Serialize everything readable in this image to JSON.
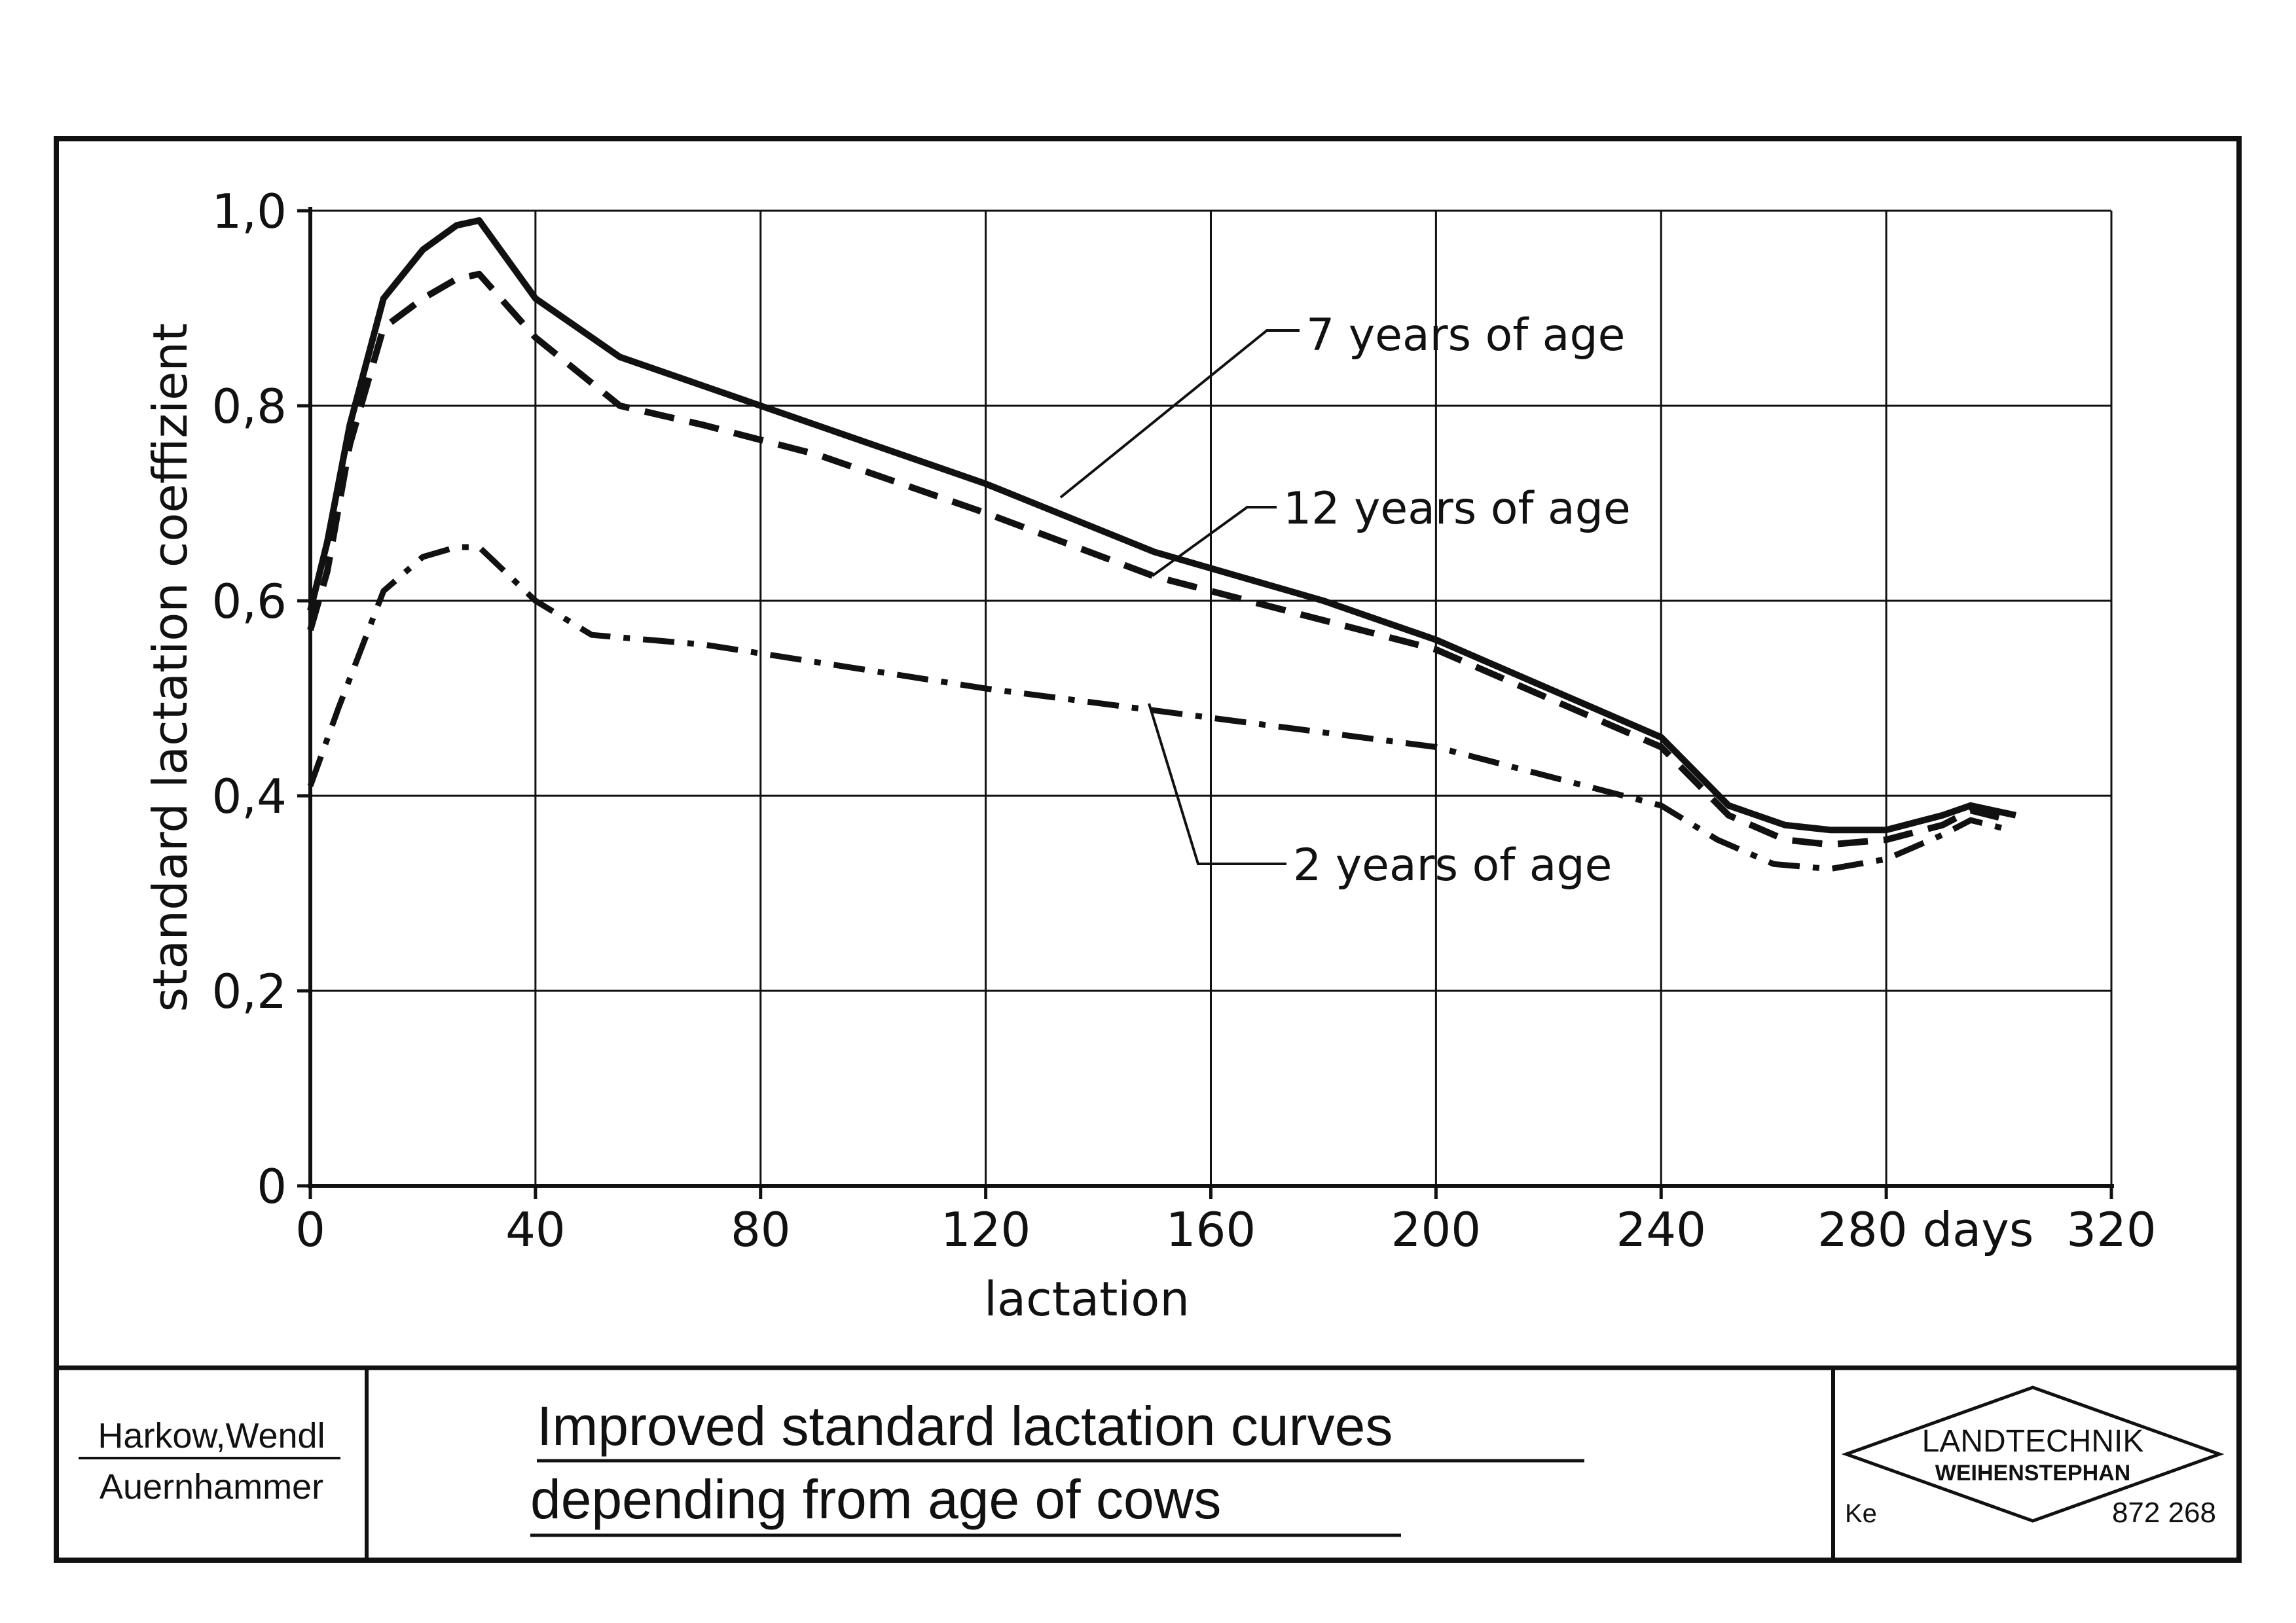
{
  "chart_data": {
    "type": "line",
    "xlabel": "lactation",
    "ylabel": "standard lactation coeffizient",
    "xlim": [
      0,
      320
    ],
    "ylim": [
      0,
      1.0
    ],
    "x_ticks": [
      "0",
      "40",
      "80",
      "120",
      "160",
      "200",
      "240",
      "280 days",
      "320"
    ],
    "y_ticks": [
      "0",
      "0,2",
      "0,4",
      "0,6",
      "0,8",
      "1,0"
    ],
    "grid": true,
    "series": [
      {
        "name": "7 years of age",
        "style": "solid",
        "x": [
          0,
          3,
          7,
          13,
          20,
          26,
          30,
          40,
          55,
          70,
          90,
          120,
          150,
          180,
          200,
          220,
          240,
          252,
          262,
          270,
          280,
          290,
          295,
          303
        ],
        "y": [
          0.59,
          0.66,
          0.78,
          0.91,
          0.96,
          0.985,
          0.99,
          0.91,
          0.85,
          0.82,
          0.78,
          0.72,
          0.65,
          0.6,
          0.56,
          0.51,
          0.46,
          0.39,
          0.37,
          0.365,
          0.365,
          0.38,
          0.39,
          0.38
        ]
      },
      {
        "name": "12 years of age",
        "style": "dashed",
        "x": [
          0,
          3,
          7,
          13,
          20,
          26,
          30,
          40,
          55,
          70,
          90,
          120,
          150,
          180,
          200,
          220,
          240,
          252,
          262,
          270,
          280,
          290,
          295,
          302
        ],
        "y": [
          0.57,
          0.63,
          0.76,
          0.88,
          0.91,
          0.93,
          0.935,
          0.87,
          0.8,
          0.78,
          0.75,
          0.69,
          0.625,
          0.58,
          0.55,
          0.5,
          0.45,
          0.38,
          0.355,
          0.35,
          0.355,
          0.37,
          0.385,
          0.375
        ]
      },
      {
        "name": "2 years of age",
        "style": "dash-dot",
        "x": [
          0,
          5,
          13,
          20,
          26,
          30,
          40,
          50,
          70,
          120,
          160,
          200,
          240,
          250,
          260,
          270,
          280,
          290,
          295,
          302
        ],
        "y": [
          0.41,
          0.49,
          0.61,
          0.645,
          0.655,
          0.655,
          0.6,
          0.565,
          0.555,
          0.51,
          0.48,
          0.45,
          0.39,
          0.355,
          0.33,
          0.325,
          0.335,
          0.36,
          0.375,
          0.365
        ]
      }
    ]
  },
  "footer": {
    "author_line1": "Harkow,Wendl",
    "author_line2": "Auernhammer",
    "title_line1": "Improved standard lactation curves",
    "title_line2": "depending from age of cows",
    "logo_name": "LANDTECHNIK",
    "logo_place": "WEIHENSTEPHAN",
    "initials": "Ke",
    "figure_number": "872 268"
  }
}
